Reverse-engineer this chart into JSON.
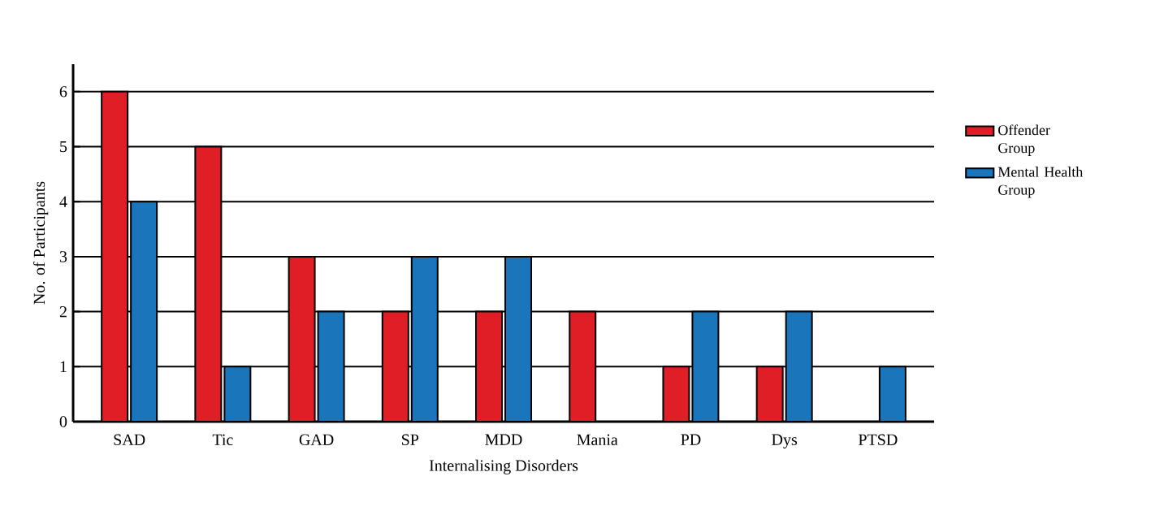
{
  "chart_data": {
    "type": "bar",
    "xlabel": "Internalising Disorders",
    "ylabel": "No. of Participants",
    "categories": [
      "SAD",
      "Tic",
      "GAD",
      "SP",
      "MDD",
      "Mania",
      "PD",
      "Dys",
      "PTSD"
    ],
    "series": [
      {
        "name": "Offender Group",
        "color": "#e01e26",
        "values": [
          6,
          5,
          3,
          2,
          2,
          2,
          1,
          1,
          0
        ]
      },
      {
        "name": "Mental Health Group",
        "color": "#1a75bb",
        "values": [
          4,
          1,
          2,
          3,
          3,
          0,
          2,
          2,
          1
        ]
      }
    ],
    "ylim": [
      0,
      6.5
    ],
    "yticks": [
      0,
      1,
      2,
      3,
      4,
      5,
      6
    ],
    "grid": "y",
    "legend": "right"
  }
}
